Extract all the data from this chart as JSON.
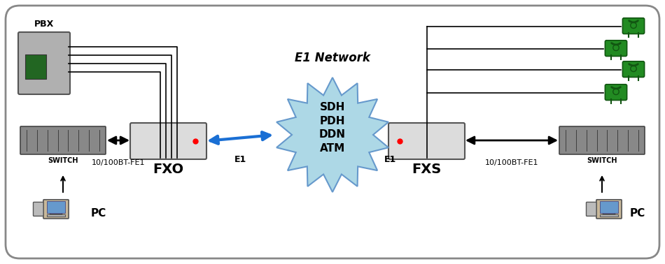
{
  "bg_color": "#f5f5f5",
  "border_color": "#cccccc",
  "title": "E1 Network",
  "fxo_label": "FXO",
  "fxs_label": "FXS",
  "pbx_label": "PBX",
  "pc_label_left": "PC",
  "pc_label_right": "PC",
  "switch_label_left": "SWITCH",
  "switch_label_right": "SWITCH",
  "link_label_left": "10/100BT-FE1",
  "link_label_right": "10/100BT-FE1",
  "e1_label_left": "E1",
  "e1_label_right": "E1",
  "cloud_text": "SDH\nPDH\nDDN\nATM",
  "cloud_color": "#add8e6",
  "cloud_edge_color": "#6699cc",
  "arrow_color": "#1a6fd4",
  "line_color": "#000000",
  "phone_color": "#228b22",
  "fxo_color": "#e8e8e8",
  "fxs_color": "#e8e8e8",
  "switch_color": "#999999",
  "pbx_color": "#aaaaaa"
}
